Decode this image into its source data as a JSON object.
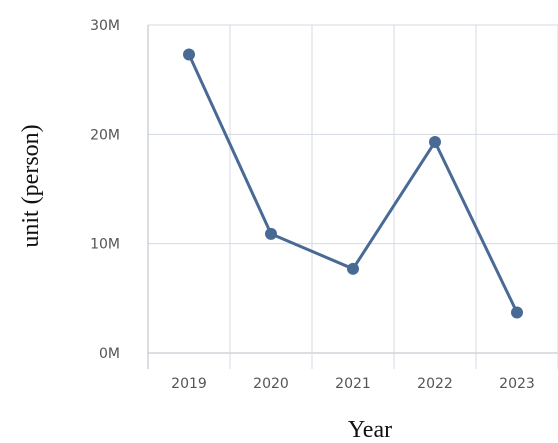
{
  "chart_data": {
    "type": "line",
    "title": "",
    "xlabel": "Year",
    "ylabel": "unit (person)",
    "categories": [
      "2019",
      "2020",
      "2021",
      "2022",
      "2023"
    ],
    "y_ticks": [
      "0M",
      "10M",
      "20M",
      "30M"
    ],
    "ylim": [
      0,
      30000000
    ],
    "series": [
      {
        "values": [
          27300000,
          10900000,
          7700000,
          19300000,
          3700000
        ]
      }
    ],
    "grid": true,
    "line_color": "#4a6a96",
    "grid_color": "#d5dae3",
    "axis_color": "#b7bcc6"
  }
}
